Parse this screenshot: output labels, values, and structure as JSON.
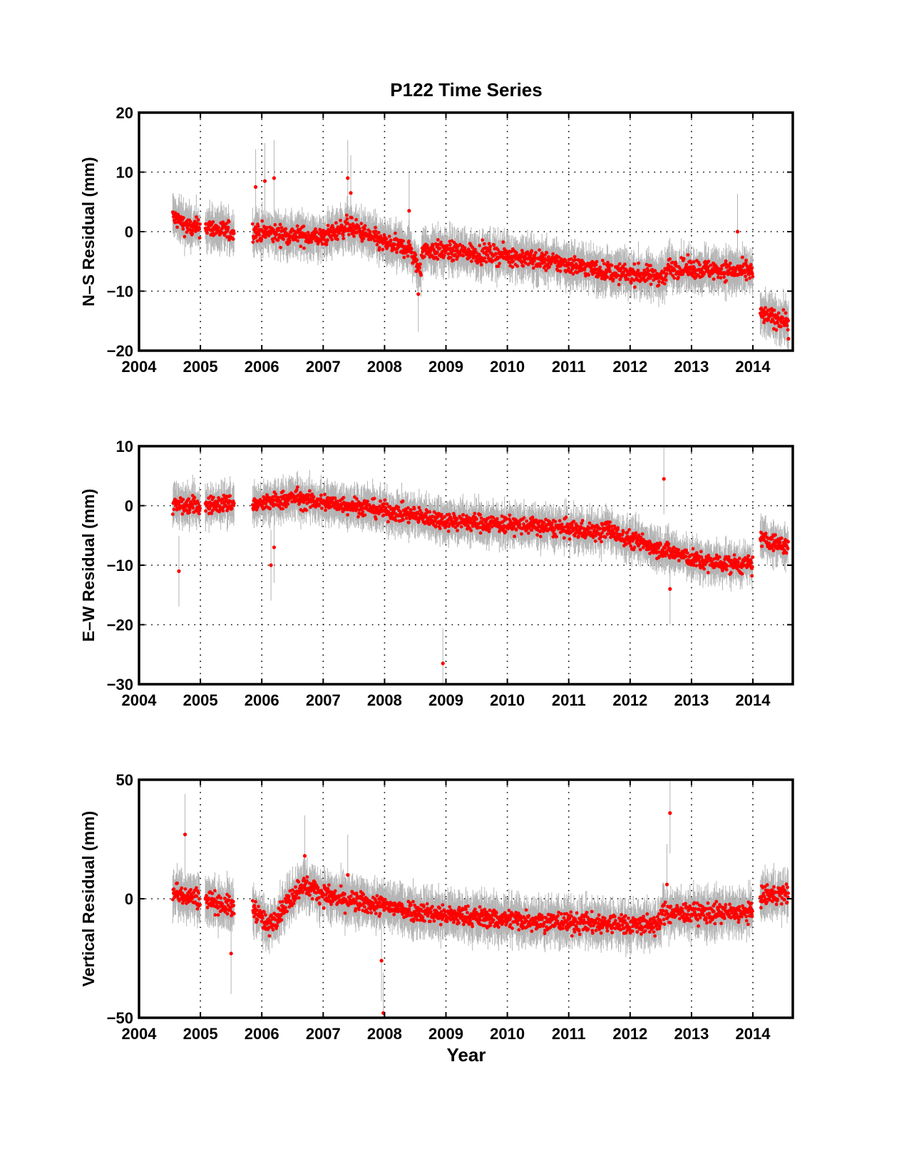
{
  "chart_data": [
    {
      "type": "scatter",
      "title": "P122 Time Series",
      "xlabel": "",
      "ylabel": "N–S Residual (mm)",
      "xlim": [
        2004,
        2014.65
      ],
      "ylim": [
        -20,
        20
      ],
      "xticks": [
        2004,
        2005,
        2006,
        2007,
        2008,
        2009,
        2010,
        2011,
        2012,
        2013,
        2014
      ],
      "xtick_labels": [
        "2004",
        "2005",
        "2006",
        "2007",
        "2008",
        "2009",
        "2010",
        "2011",
        "2012",
        "2013",
        "2014"
      ],
      "yticks": [
        -20,
        -10,
        0,
        10,
        20
      ],
      "ytick_labels": [
        "−20",
        "−10",
        "0",
        "10",
        "20"
      ],
      "grid": true,
      "error_bars": true,
      "point_color": "#ff0000",
      "errorbar_color": "#b4b4b4",
      "series": [
        {
          "segments": [
            {
              "t0": 2004.55,
              "t1": 2004.85,
              "y0": 2.5,
              "y1": 0.5
            },
            {
              "t0": 2004.85,
              "t1": 2005.0,
              "y0": 0.5,
              "y1": 0.8
            },
            {
              "t0": 2005.08,
              "t1": 2005.55,
              "y0": 0.8,
              "y1": -0.2
            },
            {
              "t0": 2005.85,
              "t1": 2006.4,
              "y0": 0.0,
              "y1": -0.5
            },
            {
              "t0": 2006.4,
              "t1": 2007.0,
              "y0": -0.5,
              "y1": -1.0
            },
            {
              "t0": 2007.0,
              "t1": 2007.4,
              "y0": -1.0,
              "y1": 1.0
            },
            {
              "t0": 2007.4,
              "t1": 2008.0,
              "y0": 1.0,
              "y1": -2.0
            },
            {
              "t0": 2008.0,
              "t1": 2008.45,
              "y0": -2.0,
              "y1": -3.0
            },
            {
              "t0": 2008.45,
              "t1": 2008.6,
              "y0": -4.5,
              "y1": -6.5
            },
            {
              "t0": 2008.6,
              "t1": 2010.0,
              "y0": -3.0,
              "y1": -4.0
            },
            {
              "t0": 2010.0,
              "t1": 2011.0,
              "y0": -4.0,
              "y1": -5.5
            },
            {
              "t0": 2011.0,
              "t1": 2011.8,
              "y0": -5.5,
              "y1": -7.0
            },
            {
              "t0": 2011.8,
              "t1": 2012.6,
              "y0": -7.0,
              "y1": -7.5
            },
            {
              "t0": 2012.6,
              "t1": 2014.0,
              "y0": -6.0,
              "y1": -6.8
            },
            {
              "t0": 2014.12,
              "t1": 2014.58,
              "y0": -14.0,
              "y1": -15.0
            }
          ],
          "noise": 1.5,
          "outliers": [
            {
              "t": 2005.9,
              "y": 7.5
            },
            {
              "t": 2006.05,
              "y": 8.5
            },
            {
              "t": 2006.2,
              "y": 9.0
            },
            {
              "t": 2007.4,
              "y": 9.0
            },
            {
              "t": 2007.45,
              "y": 6.5
            },
            {
              "t": 2008.4,
              "y": 3.5
            },
            {
              "t": 2008.55,
              "y": -10.5
            },
            {
              "t": 2013.75,
              "y": 0.0
            },
            {
              "t": 2014.58,
              "y": -18.0
            }
          ]
        }
      ]
    },
    {
      "type": "scatter",
      "title": "",
      "xlabel": "",
      "ylabel": "E–W Residual (mm)",
      "xlim": [
        2004,
        2014.65
      ],
      "ylim": [
        -30,
        10
      ],
      "xticks": [
        2004,
        2005,
        2006,
        2007,
        2008,
        2009,
        2010,
        2011,
        2012,
        2013,
        2014
      ],
      "xtick_labels": [
        "2004",
        "2005",
        "2006",
        "2007",
        "2008",
        "2009",
        "2010",
        "2011",
        "2012",
        "2013",
        "2014"
      ],
      "yticks": [
        -30,
        -20,
        -10,
        0,
        10
      ],
      "ytick_labels": [
        "−30",
        "−20",
        "−10",
        "0",
        "10"
      ],
      "grid": true,
      "error_bars": true,
      "point_color": "#ff0000",
      "errorbar_color": "#b4b4b4",
      "series": [
        {
          "segments": [
            {
              "t0": 2004.55,
              "t1": 2005.0,
              "y0": 0.0,
              "y1": 0.0
            },
            {
              "t0": 2005.08,
              "t1": 2005.55,
              "y0": 0.0,
              "y1": 0.5
            },
            {
              "t0": 2005.85,
              "t1": 2006.6,
              "y0": 0.0,
              "y1": 1.5
            },
            {
              "t0": 2006.6,
              "t1": 2007.5,
              "y0": 1.0,
              "y1": 0.0
            },
            {
              "t0": 2007.5,
              "t1": 2009.0,
              "y0": 0.0,
              "y1": -2.5
            },
            {
              "t0": 2009.0,
              "t1": 2010.5,
              "y0": -2.5,
              "y1": -3.5
            },
            {
              "t0": 2010.5,
              "t1": 2011.6,
              "y0": -3.5,
              "y1": -4.5
            },
            {
              "t0": 2011.6,
              "t1": 2011.8,
              "y0": -3.5,
              "y1": -5.0
            },
            {
              "t0": 2011.8,
              "t1": 2013.2,
              "y0": -5.0,
              "y1": -9.5
            },
            {
              "t0": 2013.2,
              "t1": 2014.0,
              "y0": -9.5,
              "y1": -10.0
            },
            {
              "t0": 2014.12,
              "t1": 2014.58,
              "y0": -5.5,
              "y1": -7.0
            }
          ],
          "noise": 1.4,
          "outliers": [
            {
              "t": 2004.65,
              "y": -11.0
            },
            {
              "t": 2006.15,
              "y": -10.0
            },
            {
              "t": 2006.2,
              "y": -7.0
            },
            {
              "t": 2008.95,
              "y": -26.5
            },
            {
              "t": 2012.55,
              "y": 4.5
            },
            {
              "t": 2012.65,
              "y": -14.0
            }
          ]
        }
      ]
    },
    {
      "type": "scatter",
      "title": "",
      "xlabel": "Year",
      "ylabel": "Vertical Residual (mm)",
      "xlim": [
        2004,
        2014.65
      ],
      "ylim": [
        -50,
        50
      ],
      "xticks": [
        2004,
        2005,
        2006,
        2007,
        2008,
        2009,
        2010,
        2011,
        2012,
        2013,
        2014
      ],
      "xtick_labels": [
        "2004",
        "2005",
        "2006",
        "2007",
        "2008",
        "2009",
        "2010",
        "2011",
        "2012",
        "2013",
        "2014"
      ],
      "yticks": [
        -50,
        0,
        50
      ],
      "ytick_labels": [
        "−50",
        "0",
        "50"
      ],
      "grid": true,
      "error_bars": true,
      "point_color": "#ff0000",
      "errorbar_color": "#b4b4b4",
      "series": [
        {
          "segments": [
            {
              "t0": 2004.55,
              "t1": 2005.0,
              "y0": 3.0,
              "y1": 0.0
            },
            {
              "t0": 2005.08,
              "t1": 2005.55,
              "y0": 0.0,
              "y1": -4.0
            },
            {
              "t0": 2005.85,
              "t1": 2006.1,
              "y0": -3.0,
              "y1": -12.0
            },
            {
              "t0": 2006.1,
              "t1": 2006.65,
              "y0": -12.0,
              "y1": 6.0
            },
            {
              "t0": 2006.65,
              "t1": 2007.2,
              "y0": 6.0,
              "y1": 0.0
            },
            {
              "t0": 2007.2,
              "t1": 2009.0,
              "y0": 0.0,
              "y1": -7.0
            },
            {
              "t0": 2009.0,
              "t1": 2011.0,
              "y0": -7.0,
              "y1": -10.0
            },
            {
              "t0": 2011.0,
              "t1": 2012.5,
              "y0": -10.0,
              "y1": -11.0
            },
            {
              "t0": 2012.5,
              "t1": 2014.0,
              "y0": -6.0,
              "y1": -6.0
            },
            {
              "t0": 2014.12,
              "t1": 2014.58,
              "y0": 1.0,
              "y1": 2.0
            }
          ],
          "noise": 4.0,
          "outliers": [
            {
              "t": 2004.75,
              "y": 27.0
            },
            {
              "t": 2006.7,
              "y": 18.0
            },
            {
              "t": 2007.4,
              "y": 10.0
            },
            {
              "t": 2007.95,
              "y": -26.0
            },
            {
              "t": 2007.98,
              "y": -48.0
            },
            {
              "t": 2005.5,
              "y": -23.0
            },
            {
              "t": 2012.65,
              "y": 36.0
            },
            {
              "t": 2012.6,
              "y": 6.0
            }
          ]
        }
      ]
    }
  ]
}
